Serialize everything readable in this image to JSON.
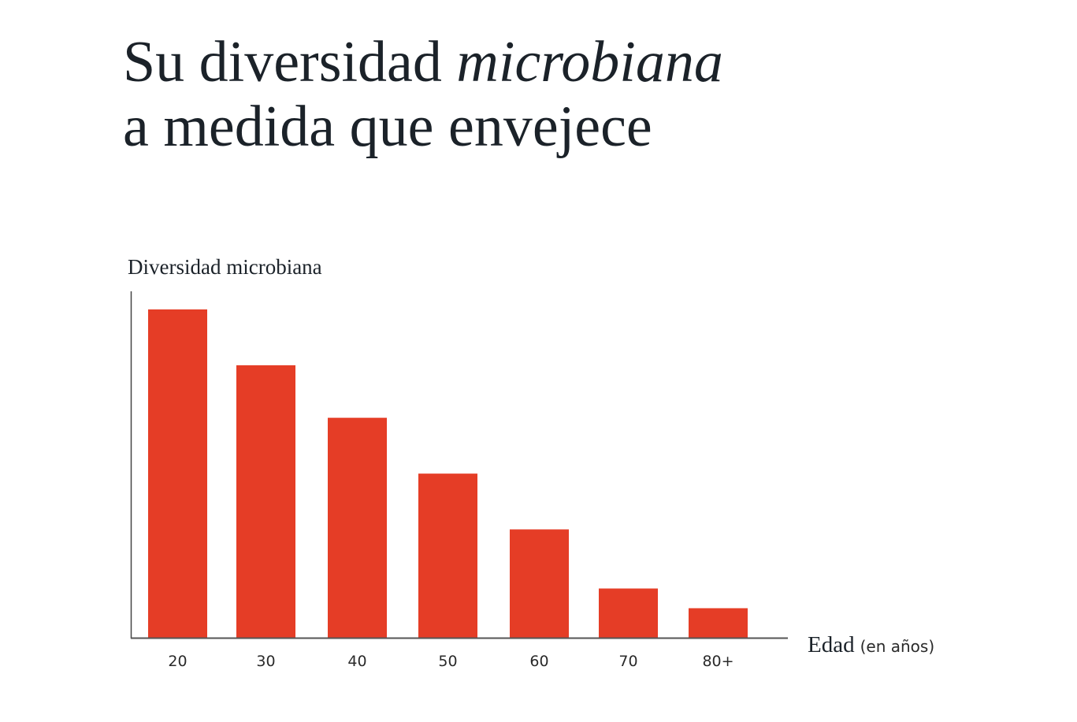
{
  "title": {
    "line1_prefix": "Su diversidad ",
    "line1_italic": "microbiana",
    "line2": "a medida que envejece"
  },
  "chart_data": {
    "type": "bar",
    "title": "Su diversidad microbiana a medida que envejece",
    "ylabel": "Diversidad microbiana",
    "xlabel": "Edad",
    "xlabel_unit": "(en años)",
    "categories": [
      "20",
      "30",
      "40",
      "50",
      "60",
      "70",
      "80+"
    ],
    "values": [
      100,
      83,
      67,
      50,
      33,
      15,
      9
    ],
    "ylim": [
      0,
      105
    ],
    "grid": false,
    "bar_color": "#e53d26"
  }
}
